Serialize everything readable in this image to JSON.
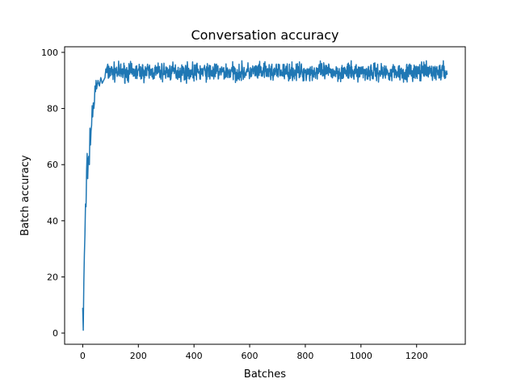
{
  "chart_data": {
    "type": "line",
    "title": "Conversation accuracy",
    "xlabel": "Batches",
    "ylabel": "Batch accuracy",
    "xlim": [
      -65,
      1375
    ],
    "ylim": [
      -4,
      102
    ],
    "xticks": [
      0,
      200,
      400,
      600,
      800,
      1000,
      1200
    ],
    "yticks": [
      0,
      20,
      40,
      60,
      80,
      100
    ],
    "grid": false,
    "legend": "none",
    "series": [
      {
        "color": "#1f77b4",
        "ramp": {
          "x": [
            0,
            2,
            4,
            6,
            8,
            10,
            12,
            14,
            16,
            18,
            20,
            22,
            24,
            26,
            28,
            30,
            32,
            34,
            36,
            38,
            40,
            42,
            44,
            46,
            48,
            50,
            55,
            60,
            65,
            70,
            75,
            80
          ],
          "y": [
            9,
            1,
            18,
            28,
            35,
            46,
            45,
            58,
            64,
            55,
            62,
            63,
            60,
            73,
            67,
            72,
            74,
            81,
            77,
            82,
            80,
            82,
            88,
            86,
            90,
            87,
            90,
            88,
            91,
            89,
            90,
            91
          ]
        },
        "plateau": {
          "x_start": 80,
          "x_end": 1310,
          "step": 1,
          "mean": 93,
          "min": 88.5,
          "max": 97
        }
      }
    ]
  }
}
